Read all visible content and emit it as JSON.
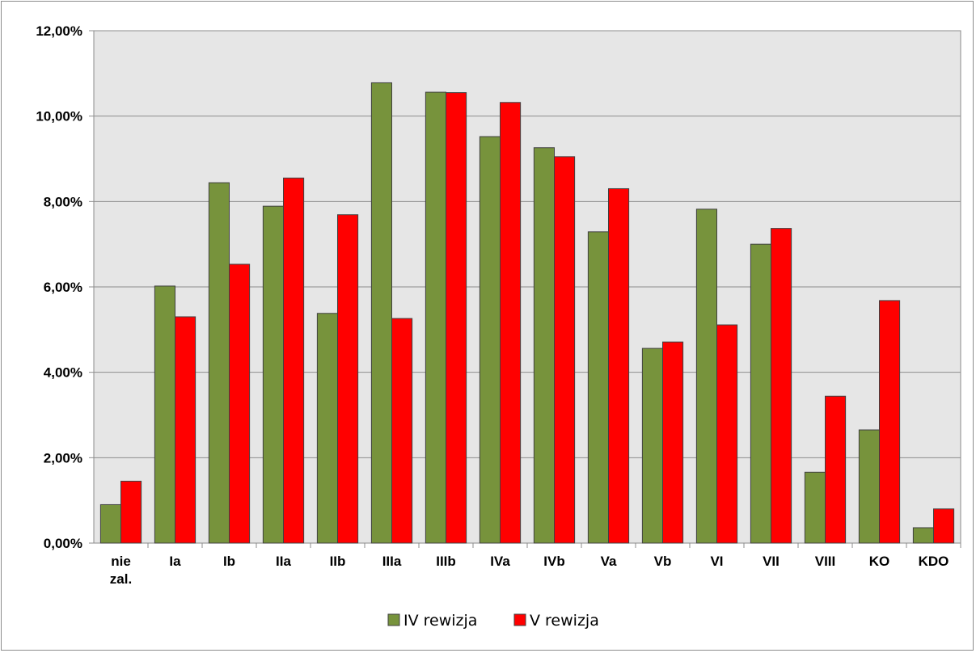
{
  "chart_data": {
    "type": "bar",
    "categories": [
      [
        "nie",
        "zal."
      ],
      [
        "Ia"
      ],
      [
        "Ib"
      ],
      [
        "IIa"
      ],
      [
        "IIb"
      ],
      [
        "IIIa"
      ],
      [
        "IIIb"
      ],
      [
        "IVa"
      ],
      [
        "IVb"
      ],
      [
        "Va"
      ],
      [
        "Vb"
      ],
      [
        "VI"
      ],
      [
        "VII"
      ],
      [
        "VIII"
      ],
      [
        "KO"
      ],
      [
        "KDO"
      ]
    ],
    "series": [
      {
        "name": "IV rewizja",
        "color": "#77933c",
        "values": [
          0.9,
          6.02,
          8.44,
          7.89,
          5.38,
          10.78,
          10.56,
          9.52,
          9.26,
          7.29,
          4.56,
          7.82,
          7.0,
          1.66,
          2.65,
          0.36
        ]
      },
      {
        "name": "V rewizja",
        "color": "#ff0000",
        "values": [
          1.45,
          5.3,
          6.53,
          8.55,
          7.69,
          5.26,
          10.55,
          10.32,
          9.05,
          8.3,
          4.71,
          5.11,
          7.37,
          3.44,
          5.68,
          0.8
        ]
      }
    ],
    "yticks": [
      "0,00%",
      "2,00%",
      "4,00%",
      "6,00%",
      "8,00%",
      "10,00%",
      "12,00%"
    ],
    "ylim": [
      0,
      12
    ],
    "grid": true,
    "legend_position": "bottom",
    "plot_background": "#e6e6e6",
    "title": "",
    "xlabel": "",
    "ylabel": ""
  }
}
